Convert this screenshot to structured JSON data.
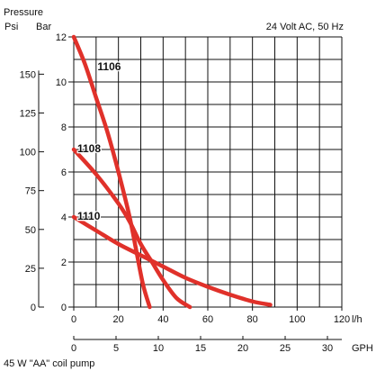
{
  "header": {
    "pressure_label": "Pressure",
    "psi_label": "Psi",
    "bar_label": "Bar",
    "spec": "24 Volt AC, 50 Hz"
  },
  "footer": {
    "note": "45 W \"AA\" coil pump"
  },
  "chart_data": {
    "type": "line",
    "title": "",
    "x_lh": {
      "unit": "l/h",
      "range": [
        0,
        120
      ],
      "ticks": [
        0,
        20,
        40,
        60,
        80,
        100,
        120
      ]
    },
    "x_gph": {
      "unit": "GPH",
      "range": [
        0,
        31.7
      ],
      "ticks": [
        0,
        5,
        10,
        15,
        20,
        25,
        30
      ]
    },
    "y_bar": {
      "unit": "Bar",
      "range": [
        0,
        12
      ],
      "ticks": [
        0,
        2,
        4,
        6,
        8,
        10,
        12
      ]
    },
    "y_psi": {
      "unit": "Psi",
      "range": [
        0,
        174
      ],
      "ticks": [
        0,
        25,
        50,
        75,
        100,
        125,
        150
      ]
    },
    "grid": true,
    "series": [
      {
        "name": "1106",
        "color": "#e0312a",
        "points": [
          [
            0,
            12
          ],
          [
            5,
            10.8
          ],
          [
            10,
            9.3
          ],
          [
            15,
            7.8
          ],
          [
            20,
            6
          ],
          [
            25,
            4
          ],
          [
            28,
            2.5
          ],
          [
            31,
            1
          ],
          [
            34,
            0
          ]
        ]
      },
      {
        "name": "1108",
        "color": "#e0312a",
        "points": [
          [
            0,
            7
          ],
          [
            10,
            5.9
          ],
          [
            20,
            4.6
          ],
          [
            25,
            3.8
          ],
          [
            30,
            2.8
          ],
          [
            35,
            2
          ],
          [
            40,
            1.2
          ],
          [
            46,
            0.4
          ],
          [
            52,
            0
          ]
        ]
      },
      {
        "name": "1110",
        "color": "#e0312a",
        "points": [
          [
            0,
            4
          ],
          [
            10,
            3.4
          ],
          [
            20,
            2.8
          ],
          [
            30,
            2.3
          ],
          [
            40,
            1.8
          ],
          [
            50,
            1.3
          ],
          [
            60,
            0.9
          ],
          [
            70,
            0.55
          ],
          [
            80,
            0.25
          ],
          [
            88,
            0.1
          ]
        ]
      }
    ]
  }
}
